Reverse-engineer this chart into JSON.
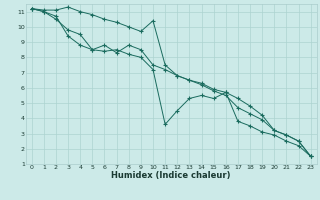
{
  "xlabel": "Humidex (Indice chaleur)",
  "background_color": "#cceae8",
  "grid_color": "#add4d0",
  "line_color": "#1a6b5e",
  "xlim": [
    -0.5,
    23.5
  ],
  "ylim": [
    1,
    11.5
  ],
  "xticks": [
    0,
    1,
    2,
    3,
    4,
    5,
    6,
    7,
    8,
    9,
    10,
    11,
    12,
    13,
    14,
    15,
    16,
    17,
    18,
    19,
    20,
    21,
    22,
    23
  ],
  "yticks": [
    1,
    2,
    3,
    4,
    5,
    6,
    7,
    8,
    9,
    10,
    11
  ],
  "series1_x": [
    0,
    1,
    2,
    3,
    4,
    5,
    6,
    7,
    8,
    9,
    10,
    11,
    12,
    13,
    14,
    15,
    16,
    17,
    18,
    19,
    20,
    21,
    22,
    23
  ],
  "series1_y": [
    11.2,
    11.1,
    11.1,
    11.3,
    11.0,
    10.8,
    10.5,
    10.3,
    10.0,
    9.7,
    10.4,
    7.5,
    6.8,
    6.5,
    6.3,
    5.9,
    5.7,
    5.3,
    4.8,
    4.2,
    3.2,
    2.9,
    2.5,
    1.5
  ],
  "series2_x": [
    0,
    1,
    2,
    3,
    4,
    5,
    6,
    7,
    8,
    9,
    10,
    11,
    12,
    13,
    14,
    15,
    16,
    17,
    18,
    19,
    20,
    21,
    22,
    23
  ],
  "series2_y": [
    11.2,
    11.0,
    10.7,
    9.4,
    8.8,
    8.5,
    8.8,
    8.3,
    8.8,
    8.5,
    7.5,
    7.2,
    6.8,
    6.5,
    6.2,
    5.8,
    5.5,
    4.7,
    4.3,
    3.9,
    3.2,
    2.9,
    2.5,
    1.5
  ],
  "series3_x": [
    0,
    1,
    2,
    3,
    4,
    5,
    6,
    7,
    8,
    9,
    10,
    11,
    12,
    13,
    14,
    15,
    16,
    17,
    18,
    19,
    20,
    21,
    22,
    23
  ],
  "series3_y": [
    11.2,
    11.0,
    10.5,
    9.8,
    9.5,
    8.5,
    8.4,
    8.5,
    8.2,
    8.0,
    7.2,
    3.6,
    4.5,
    5.3,
    5.5,
    5.3,
    5.7,
    3.8,
    3.5,
    3.1,
    2.9,
    2.5,
    2.2,
    1.5
  ]
}
